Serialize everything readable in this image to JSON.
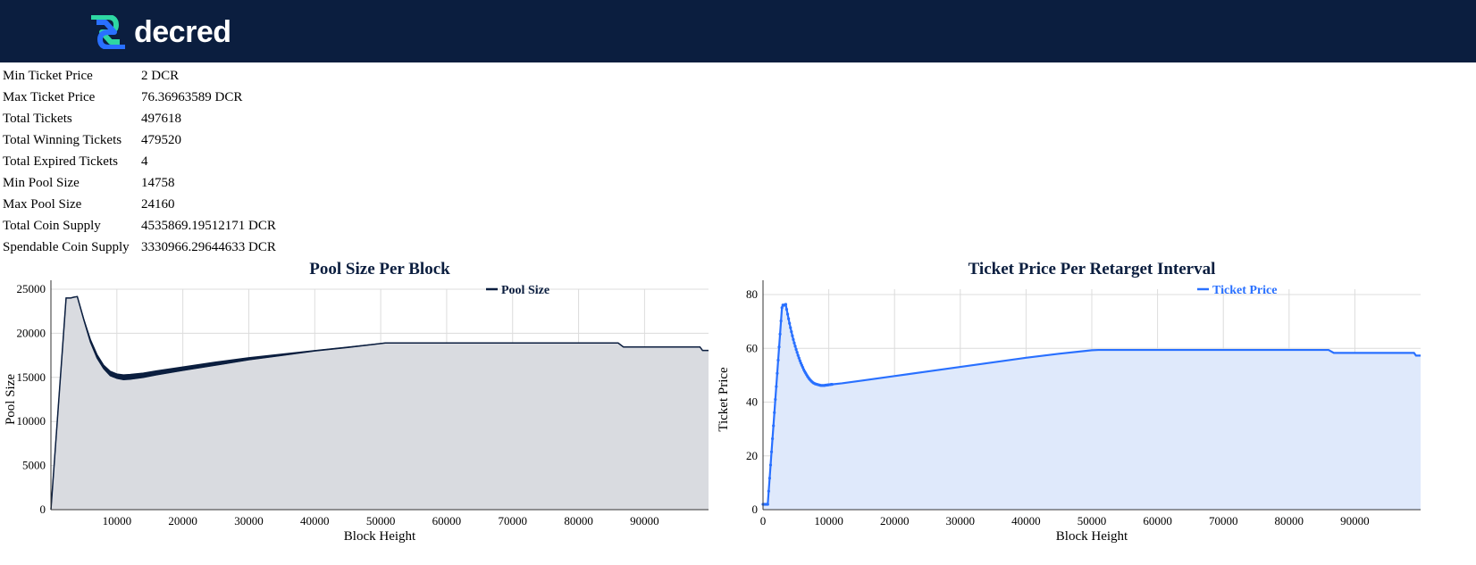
{
  "header": {
    "logo_text": "decred"
  },
  "stats": [
    {
      "label": "Min Ticket Price",
      "value": "2 DCR"
    },
    {
      "label": "Max Ticket Price",
      "value": "76.36963589 DCR"
    },
    {
      "label": "Total Tickets",
      "value": "497618"
    },
    {
      "label": "Total Winning Tickets",
      "value": "479520"
    },
    {
      "label": "Total Expired Tickets",
      "value": "4"
    },
    {
      "label": "Min Pool Size",
      "value": "14758"
    },
    {
      "label": "Max Pool Size",
      "value": "24160"
    },
    {
      "label": "Total Coin Supply",
      "value": "4535869.19512171 DCR"
    },
    {
      "label": "Spendable Coin Supply",
      "value": "3330966.29644633 DCR"
    }
  ],
  "chart_data": [
    {
      "type": "area",
      "title": "Pool Size Per Block",
      "xlabel": "Block Height",
      "ylabel": "Pool Size",
      "xlim": [
        0,
        99700
      ],
      "ylim": [
        0,
        25000
      ],
      "xticks": [
        10000,
        20000,
        30000,
        40000,
        50000,
        60000,
        70000,
        80000,
        90000
      ],
      "yticks": [
        0,
        5000,
        10000,
        15000,
        20000,
        25000
      ],
      "grid": true,
      "legend_position": "top-right",
      "series": [
        {
          "name": "Pool Size",
          "color": "#0b1e3f",
          "fill": "#d9dbe0",
          "x": [
            0,
            2300,
            3000,
            3500,
            4000,
            5000,
            6000,
            7000,
            8000,
            9000,
            10000,
            11000,
            12000,
            14000,
            16000,
            20000,
            25000,
            30000,
            35000,
            40000,
            45000,
            50700,
            60000,
            70000,
            80000,
            86000,
            86800,
            90000,
            95000,
            98400,
            98800,
            99700
          ],
          "y": [
            0,
            24000,
            24000,
            24100,
            24160,
            21500,
            19000,
            17200,
            16000,
            15200,
            14900,
            14758,
            14800,
            15000,
            15300,
            15800,
            16400,
            17000,
            17500,
            18000,
            18400,
            18900,
            18900,
            18900,
            18900,
            18900,
            18450,
            18450,
            18450,
            18450,
            18050,
            18050
          ],
          "band_top": [
            0,
            24000,
            24000,
            24100,
            24160,
            21600,
            19300,
            17600,
            16400,
            15700,
            15400,
            15300,
            15350,
            15500,
            15750,
            16200,
            16750,
            17250,
            17650,
            18050,
            18450,
            18900,
            18900,
            18900,
            18900,
            18900,
            18450,
            18450,
            18450,
            18450,
            18050,
            18050
          ]
        }
      ]
    },
    {
      "type": "area",
      "title": "Ticket Price Per Retarget Interval",
      "xlabel": "Block Height",
      "ylabel": "Ticket Price",
      "xlim": [
        0,
        100000
      ],
      "ylim": [
        0,
        82
      ],
      "xticks": [
        0,
        10000,
        20000,
        30000,
        40000,
        50000,
        60000,
        70000,
        80000,
        90000
      ],
      "yticks": [
        0,
        20,
        40,
        60,
        80
      ],
      "grid": true,
      "legend_position": "top-right",
      "series": [
        {
          "name": "Ticket Price",
          "color": "#2970ff",
          "fill": "#dfe9fb",
          "x": [
            0,
            144,
            288,
            432,
            576,
            720,
            864,
            1008,
            1152,
            1296,
            1440,
            1584,
            1728,
            1872,
            2016,
            2160,
            2304,
            2448,
            2592,
            2736,
            2880,
            3024,
            3168,
            3312,
            3456,
            3600,
            3744,
            3888,
            4032,
            4176,
            4320,
            4464,
            4608,
            4752,
            4896,
            5040,
            5184,
            5328,
            5472,
            5616,
            5760,
            5904,
            6048,
            6192,
            6336,
            6480,
            6624,
            6768,
            6912,
            7056,
            7200,
            7344,
            7488,
            7632,
            7776,
            7920,
            8064,
            8208,
            8352,
            8496,
            8640,
            8784,
            8928,
            9072,
            9216,
            9360,
            9504,
            9648,
            9792,
            9936,
            10080,
            10224,
            10368,
            10512,
            12000,
            15000,
            20000,
            25000,
            30000,
            35000,
            40000,
            45000,
            50000,
            51000,
            60000,
            70000,
            80000,
            86000,
            86800,
            90000,
            95000,
            99000,
            99300,
            100000
          ],
          "y": [
            2,
            2,
            2,
            2,
            2,
            2,
            6.9,
            11.7,
            16.6,
            21.5,
            26.4,
            31.2,
            36.1,
            41.0,
            45.8,
            50.7,
            55.6,
            60.5,
            65.3,
            70.2,
            75.1,
            76.1,
            76.0,
            76.2,
            76.37,
            74.5,
            72.7,
            71.0,
            69.3,
            67.7,
            66.2,
            64.7,
            63.3,
            62.0,
            60.8,
            59.6,
            58.5,
            57.4,
            56.4,
            55.4,
            54.5,
            53.7,
            52.9,
            52.1,
            51.4,
            50.8,
            50.2,
            49.6,
            49.1,
            48.6,
            48.2,
            47.8,
            47.5,
            47.2,
            47.0,
            46.8,
            46.7,
            46.6,
            46.5,
            46.4,
            46.3,
            46.2,
            46.2,
            46.2,
            46.2,
            46.2,
            46.3,
            46.3,
            46.4,
            46.4,
            46.5,
            46.5,
            46.6,
            46.6,
            47.0,
            48.0,
            49.7,
            51.4,
            53.1,
            54.8,
            56.5,
            58.0,
            59.3,
            59.4,
            59.4,
            59.4,
            59.4,
            59.4,
            58.3,
            58.3,
            58.3,
            58.3,
            57.3,
            57.3
          ],
          "marker_count": 74
        }
      ]
    }
  ]
}
